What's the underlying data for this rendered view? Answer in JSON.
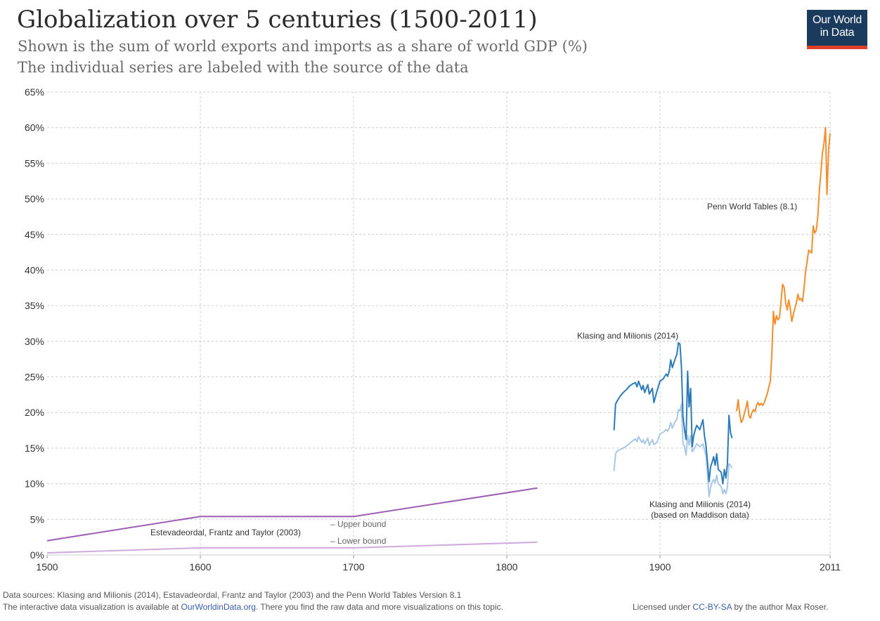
{
  "header": {
    "title": "Globalization over 5 centuries (1500-2011)",
    "subtitle": "Shown is the sum of world exports and imports as a share of world GDP (%)",
    "subtitle2": "The individual series are labeled with the source of the data"
  },
  "logo": {
    "line1": "Our World",
    "line2": "in Data"
  },
  "footer": {
    "sources": "Data sources: Klasing and Milionis (2014), Estavadeordal, Frantz and Taylor (2003) and the Penn World Tables Version 8.1",
    "interactive_prefix": "The interactive data visualization is available at ",
    "interactive_link": "OurWorldinData.org",
    "interactive_suffix": ". There you find the raw data and more visualizations on this topic.",
    "license_prefix": "Licensed under ",
    "license_link": "CC-BY-SA",
    "license_suffix": " by the author Max Roser."
  },
  "colors": {
    "purple_dark": "#9c5fb5",
    "purple_light": "#d0a9dd",
    "blue_dark": "#2b7bba",
    "blue_light": "#a8c8e8",
    "orange": "#f28e2b",
    "grid": "#cccccc",
    "logo_bg": "#1a3a5e",
    "logo_accent": "#e0402a"
  },
  "chart_data": {
    "type": "line",
    "xlim": [
      1500,
      2011
    ],
    "ylim": [
      0,
      65
    ],
    "x_ticks": [
      1500,
      1600,
      1700,
      1800,
      1900,
      2011
    ],
    "y_ticks": [
      0,
      5,
      10,
      15,
      20,
      25,
      30,
      35,
      40,
      45,
      50,
      55,
      60,
      65
    ],
    "y_tick_suffix": "%",
    "grid": true,
    "annotations": {
      "estevadeordal": "Estevadeordal, Frantz and Taylor (2003)",
      "upper_bound": "– Upper bound",
      "lower_bound": "– Lower bound",
      "klasing": "Klasing and Milionis (2014)",
      "klasing_maddison_1": "Klasing and Milionis (2014)",
      "klasing_maddison_2": "(based on Maddison data)",
      "penn": "Penn World Tables (8.1)"
    },
    "series": [
      {
        "key": "estevadeordal_upper",
        "color": "#9c5fb5",
        "x": [
          1500,
          1600,
          1700,
          1820
        ],
        "y": [
          2.0,
          5.4,
          5.4,
          9.4
        ]
      },
      {
        "key": "estevadeordal_lower",
        "color": "#d0a9dd",
        "x": [
          1500,
          1600,
          1700,
          1820
        ],
        "y": [
          0.3,
          1.0,
          1.0,
          1.8
        ]
      },
      {
        "key": "klasing_maddison",
        "color": "#a8c8e8",
        "x": [
          1870,
          1871,
          1872,
          1874,
          1876,
          1878,
          1880,
          1882,
          1884,
          1885,
          1886,
          1888,
          1889,
          1890,
          1892,
          1893,
          1895,
          1896,
          1898,
          1900,
          1902,
          1904,
          1905,
          1906,
          1907,
          1908,
          1910,
          1911,
          1912,
          1913,
          1914,
          1915,
          1916,
          1917,
          1918,
          1919,
          1920,
          1921,
          1922,
          1923,
          1924,
          1926,
          1928,
          1929,
          1930,
          1931,
          1932,
          1933,
          1934,
          1935,
          1936,
          1937,
          1938,
          1940,
          1941,
          1942,
          1943,
          1944,
          1945,
          1946,
          1947
        ],
        "y": [
          11.8,
          14.2,
          14.6,
          14.8,
          15.0,
          15.3,
          15.6,
          16.0,
          16.3,
          15.9,
          16.6,
          15.8,
          16.2,
          15.6,
          16.4,
          15.4,
          16.2,
          15.5,
          15.8,
          17.0,
          17.2,
          17.6,
          17.4,
          17.8,
          18.6,
          17.8,
          18.8,
          19.0,
          20.4,
          20.2,
          21.2,
          15.6,
          15.2,
          14.0,
          16.8,
          15.4,
          16.8,
          14.5,
          14.8,
          15.2,
          15.6,
          15.2,
          15.6,
          14.8,
          14.0,
          11.4,
          8.2,
          9.5,
          10.2,
          10.6,
          10.1,
          11.2,
          10.0,
          9.6,
          8.6,
          9.2,
          8.6,
          9.4,
          12.8,
          12.6,
          12.2
        ]
      },
      {
        "key": "klasing",
        "color": "#2b7bba",
        "x": [
          1870,
          1871,
          1872,
          1874,
          1876,
          1878,
          1880,
          1882,
          1884,
          1885,
          1886,
          1888,
          1889,
          1890,
          1892,
          1893,
          1895,
          1896,
          1898,
          1900,
          1902,
          1904,
          1905,
          1906,
          1907,
          1908,
          1910,
          1911,
          1912,
          1913,
          1914,
          1915,
          1916,
          1917,
          1918,
          1919,
          1920,
          1921,
          1922,
          1923,
          1924,
          1926,
          1928,
          1929,
          1930,
          1931,
          1932,
          1933,
          1934,
          1935,
          1936,
          1937,
          1938,
          1940,
          1941,
          1942,
          1943,
          1944,
          1945,
          1946,
          1947
        ],
        "y": [
          17.5,
          21.2,
          21.6,
          22.3,
          22.8,
          23.2,
          23.7,
          24.0,
          24.2,
          23.6,
          24.4,
          23.2,
          23.8,
          22.8,
          23.9,
          22.6,
          23.4,
          21.4,
          23.0,
          24.4,
          24.7,
          25.4,
          25.1,
          25.8,
          27.4,
          26.3,
          27.6,
          28.2,
          29.8,
          29.6,
          26.4,
          19.4,
          17.6,
          16.2,
          25.8,
          20.8,
          23.4,
          15.2,
          16.8,
          17.6,
          18.2,
          17.6,
          19.0,
          16.8,
          15.4,
          13.0,
          10.3,
          12.4,
          13.0,
          13.8,
          12.6,
          14.2,
          12.0,
          11.6,
          10.0,
          12.0,
          10.8,
          12.8,
          19.6,
          17.2,
          16.4
        ]
      },
      {
        "key": "penn",
        "color": "#f28e2b",
        "x": [
          1950,
          1951,
          1952,
          1953,
          1954,
          1955,
          1956,
          1957,
          1958,
          1959,
          1960,
          1961,
          1962,
          1963,
          1964,
          1965,
          1966,
          1967,
          1968,
          1969,
          1970,
          1971,
          1972,
          1973,
          1974,
          1975,
          1976,
          1977,
          1978,
          1979,
          1980,
          1981,
          1982,
          1983,
          1984,
          1985,
          1986,
          1987,
          1988,
          1989,
          1990,
          1991,
          1992,
          1993,
          1994,
          1995,
          1996,
          1997,
          1998,
          1999,
          2000,
          2001,
          2002,
          2003,
          2004,
          2005,
          2006,
          2007,
          2008,
          2009,
          2010,
          2011
        ],
        "y": [
          20.2,
          21.8,
          19.8,
          18.6,
          19.0,
          19.8,
          20.6,
          21.6,
          19.6,
          19.2,
          20.0,
          20.4,
          20.1,
          21.0,
          21.4,
          21.0,
          21.3,
          21.0,
          21.4,
          22.0,
          22.6,
          23.6,
          24.4,
          28.4,
          34.2,
          32.4,
          33.6,
          33.0,
          33.4,
          35.6,
          38.0,
          37.6,
          35.4,
          34.4,
          35.8,
          34.6,
          32.8,
          33.8,
          34.6,
          35.4,
          36.6,
          35.8,
          36.0,
          35.6,
          37.4,
          39.8,
          41.2,
          42.8,
          42.6,
          42.4,
          46.2,
          45.2,
          45.6,
          47.6,
          51.2,
          53.6,
          56.4,
          57.8,
          60.0,
          50.6,
          56.8,
          59.2
        ]
      }
    ]
  }
}
